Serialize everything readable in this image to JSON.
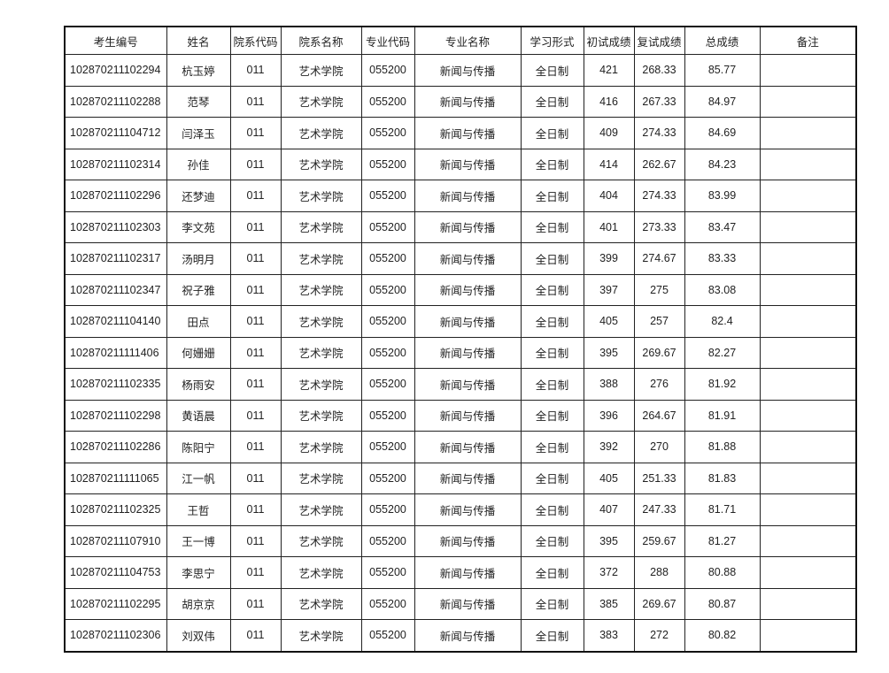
{
  "table": {
    "headers": [
      "考生编号",
      "姓名",
      "院系代码",
      "院系名称",
      "专业代码",
      "专业名称",
      "学习形式",
      "初试成绩",
      "复试成绩",
      "总成绩",
      "备注"
    ],
    "rows": [
      [
        "102870211102294",
        "杭玉婷",
        "011",
        "艺术学院",
        "055200",
        "新闻与传播",
        "全日制",
        "421",
        "268.33",
        "85.77",
        ""
      ],
      [
        "102870211102288",
        "范琴",
        "011",
        "艺术学院",
        "055200",
        "新闻与传播",
        "全日制",
        "416",
        "267.33",
        "84.97",
        ""
      ],
      [
        "102870211104712",
        "闫泽玉",
        "011",
        "艺术学院",
        "055200",
        "新闻与传播",
        "全日制",
        "409",
        "274.33",
        "84.69",
        ""
      ],
      [
        "102870211102314",
        "孙佳",
        "011",
        "艺术学院",
        "055200",
        "新闻与传播",
        "全日制",
        "414",
        "262.67",
        "84.23",
        ""
      ],
      [
        "102870211102296",
        "还梦迪",
        "011",
        "艺术学院",
        "055200",
        "新闻与传播",
        "全日制",
        "404",
        "274.33",
        "83.99",
        ""
      ],
      [
        "102870211102303",
        "李文苑",
        "011",
        "艺术学院",
        "055200",
        "新闻与传播",
        "全日制",
        "401",
        "273.33",
        "83.47",
        ""
      ],
      [
        "102870211102317",
        "汤明月",
        "011",
        "艺术学院",
        "055200",
        "新闻与传播",
        "全日制",
        "399",
        "274.67",
        "83.33",
        ""
      ],
      [
        "102870211102347",
        "祝子雅",
        "011",
        "艺术学院",
        "055200",
        "新闻与传播",
        "全日制",
        "397",
        "275",
        "83.08",
        ""
      ],
      [
        "102870211104140",
        "田点",
        "011",
        "艺术学院",
        "055200",
        "新闻与传播",
        "全日制",
        "405",
        "257",
        "82.4",
        ""
      ],
      [
        "102870211111406",
        "何姗姗",
        "011",
        "艺术学院",
        "055200",
        "新闻与传播",
        "全日制",
        "395",
        "269.67",
        "82.27",
        ""
      ],
      [
        "102870211102335",
        "杨雨安",
        "011",
        "艺术学院",
        "055200",
        "新闻与传播",
        "全日制",
        "388",
        "276",
        "81.92",
        ""
      ],
      [
        "102870211102298",
        "黄语晨",
        "011",
        "艺术学院",
        "055200",
        "新闻与传播",
        "全日制",
        "396",
        "264.67",
        "81.91",
        ""
      ],
      [
        "102870211102286",
        "陈阳宁",
        "011",
        "艺术学院",
        "055200",
        "新闻与传播",
        "全日制",
        "392",
        "270",
        "81.88",
        ""
      ],
      [
        "102870211111065",
        "江一帆",
        "011",
        "艺术学院",
        "055200",
        "新闻与传播",
        "全日制",
        "405",
        "251.33",
        "81.83",
        ""
      ],
      [
        "102870211102325",
        "王哲",
        "011",
        "艺术学院",
        "055200",
        "新闻与传播",
        "全日制",
        "407",
        "247.33",
        "81.71",
        ""
      ],
      [
        "102870211107910",
        "王一博",
        "011",
        "艺术学院",
        "055200",
        "新闻与传播",
        "全日制",
        "395",
        "259.67",
        "81.27",
        ""
      ],
      [
        "102870211104753",
        "李思宁",
        "011",
        "艺术学院",
        "055200",
        "新闻与传播",
        "全日制",
        "372",
        "288",
        "80.88",
        ""
      ],
      [
        "102870211102295",
        "胡京京",
        "011",
        "艺术学院",
        "055200",
        "新闻与传播",
        "全日制",
        "385",
        "269.67",
        "80.87",
        ""
      ],
      [
        "102870211102306",
        "刘双伟",
        "011",
        "艺术学院",
        "055200",
        "新闻与传播",
        "全日制",
        "383",
        "272",
        "80.82",
        ""
      ]
    ]
  }
}
